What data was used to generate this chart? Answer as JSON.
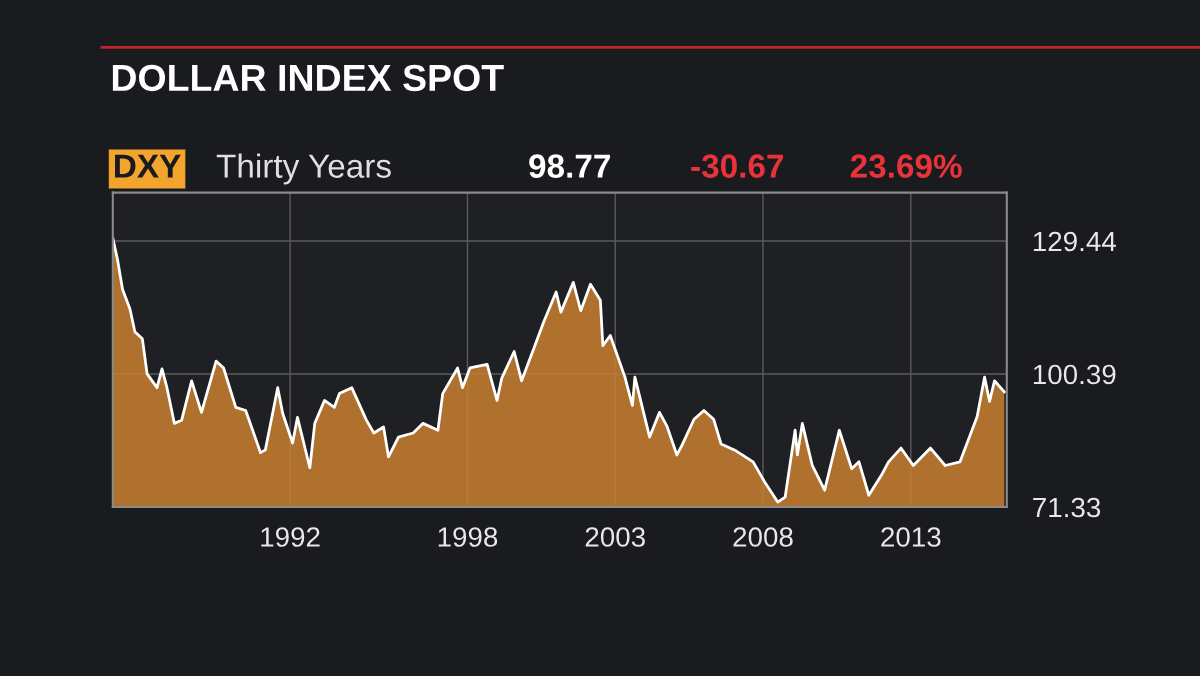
{
  "chart_data": {
    "type": "area",
    "title": "DOLLAR INDEX SPOT",
    "annotations": [
      "DXY",
      "Thirty Years",
      "98.77",
      "-30.67",
      "23.69%"
    ],
    "x": [
      "1986-01",
      "1986-03",
      "1986-05",
      "1986-08",
      "1986-10",
      "1987-01",
      "1987-03",
      "1987-07",
      "1987-09",
      "1987-11",
      "1988-02",
      "1988-05",
      "1988-09",
      "1989-01",
      "1989-07",
      "1989-10",
      "1990-03",
      "1990-07",
      "1991-01",
      "1991-03",
      "1991-08",
      "1991-10",
      "1992-02",
      "1992-04",
      "1992-09",
      "1992-11",
      "1993-03",
      "1993-07",
      "1993-09",
      "1994-02",
      "1994-08",
      "1994-11",
      "1995-03",
      "1995-05",
      "1995-09",
      "1996-03",
      "1996-07",
      "1997-01",
      "1997-03",
      "1997-09",
      "1997-11",
      "1998-02",
      "1998-09",
      "1999-01",
      "1999-03",
      "1999-08",
      "1999-11",
      "2000-04",
      "2000-08",
      "2001-01",
      "2001-03",
      "2001-08",
      "2001-11",
      "2002-03",
      "2002-07",
      "2002-08",
      "2002-11",
      "2003-05",
      "2003-08",
      "2003-09",
      "2004-03",
      "2004-07",
      "2004-10",
      "2005-02",
      "2005-04",
      "2005-09",
      "2006-01",
      "2006-05",
      "2006-08",
      "2007-02",
      "2007-09",
      "2008-02",
      "2008-07",
      "2008-10",
      "2009-02",
      "2009-03",
      "2009-05",
      "2009-09",
      "2010-02",
      "2010-08",
      "2011-01",
      "2011-04",
      "2011-08",
      "2012-01",
      "2012-04",
      "2012-09",
      "2013-02",
      "2013-09",
      "2014-03",
      "2014-09",
      "2015-04",
      "2015-07",
      "2015-09",
      "2015-11",
      "2016-03"
    ],
    "series": [
      {
        "color": "#c9802f",
        "values": [
          130.1,
          125.3,
          118.9,
          114.6,
          109.6,
          108.1,
          100.4,
          97.4,
          101.5,
          97.4,
          89.6,
          90.3,
          98.9,
          92.0,
          103.2,
          101.7,
          93.1,
          92.4,
          83.2,
          83.8,
          97.4,
          91.8,
          85.3,
          90.9,
          79.9,
          89.6,
          94.6,
          93.1,
          96.1,
          97.4,
          90.3,
          87.5,
          88.8,
          82.3,
          86.6,
          87.5,
          89.6,
          88.1,
          96.1,
          101.7,
          97.4,
          101.7,
          102.5,
          94.6,
          99.5,
          105.3,
          98.9,
          106.0,
          111.8,
          118.3,
          113.9,
          120.4,
          114.2,
          120.0,
          116.5,
          106.6,
          108.8,
          99.7,
          93.5,
          99.7,
          86.6,
          92.0,
          89.0,
          82.7,
          84.7,
          90.5,
          92.4,
          90.5,
          85.1,
          83.6,
          81.2,
          76.5,
          72.4,
          73.5,
          88.1,
          82.7,
          89.6,
          80.4,
          75.0,
          88.1,
          79.7,
          81.2,
          73.9,
          78.2,
          81.2,
          84.2,
          80.4,
          84.2,
          80.4,
          81.2,
          91.1,
          99.7,
          94.4,
          98.9,
          96.5
        ]
      }
    ],
    "xlim": [
      "1986-01",
      "2016-04"
    ],
    "xticks": [
      {
        "value": "1992-01",
        "label": "1992"
      },
      {
        "value": "1998-01",
        "label": "1998"
      },
      {
        "value": "2003-01",
        "label": "2003"
      },
      {
        "value": "2008-01",
        "label": "2008"
      },
      {
        "value": "2013-01",
        "label": "2013"
      }
    ],
    "ylim": [
      71.33,
      140
    ],
    "yticks": [
      71.33,
      100.39,
      129.44
    ],
    "grid": true,
    "legend": false
  }
}
